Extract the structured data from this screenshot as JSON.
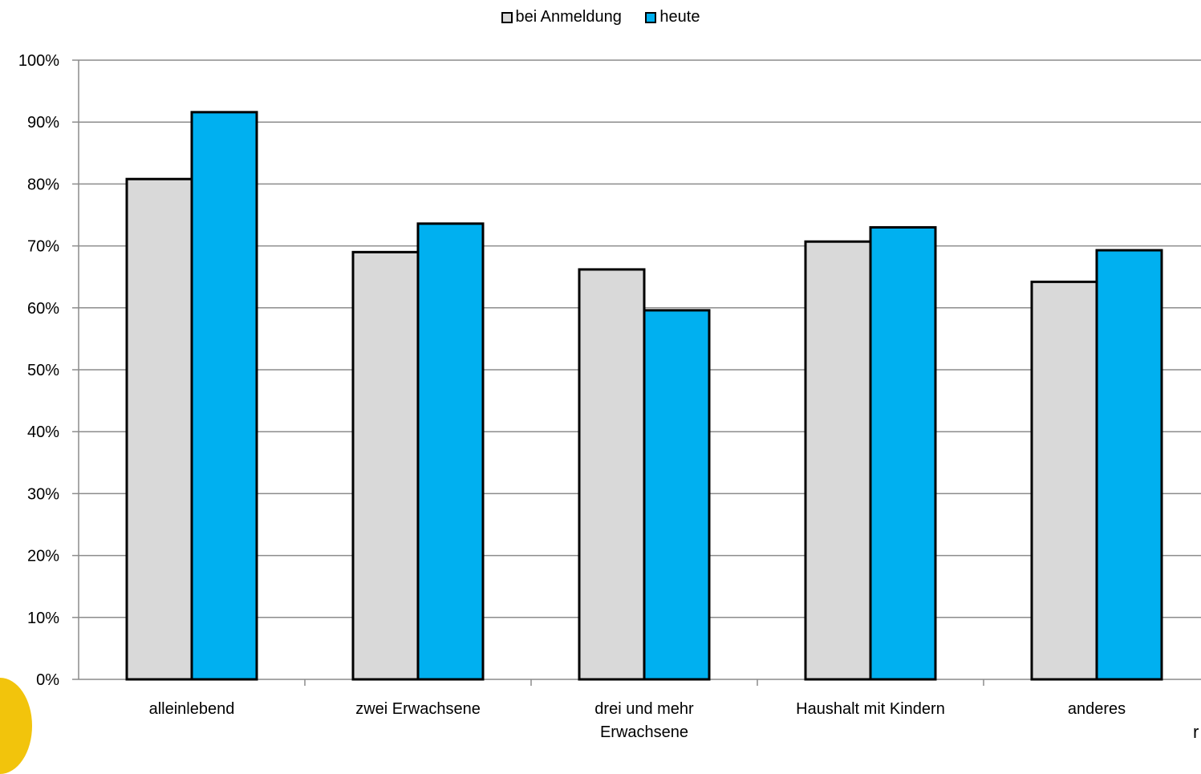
{
  "chart_data": {
    "type": "bar",
    "categories": [
      "alleinlebend",
      "zwei Erwachsene",
      "drei und mehr Erwachsene",
      "Haushalt mit Kindern",
      "anderes"
    ],
    "category_lines": [
      [
        "alleinlebend"
      ],
      [
        "zwei Erwachsene"
      ],
      [
        "drei und mehr",
        "Erwachsene"
      ],
      [
        "Haushalt mit Kindern"
      ],
      [
        "anderes"
      ]
    ],
    "series": [
      {
        "name": "bei Anmeldung",
        "values": [
          0.808,
          0.69,
          0.662,
          0.707,
          0.642
        ],
        "color": "#d9d9d9"
      },
      {
        "name": "heute",
        "values": [
          0.916,
          0.736,
          0.596,
          0.73,
          0.693
        ],
        "color": "#00b0f0"
      }
    ],
    "ylim": [
      0,
      1
    ],
    "yticks": [
      "0%",
      "10%",
      "20%",
      "30%",
      "40%",
      "50%",
      "60%",
      "70%",
      "80%",
      "90%",
      "100%"
    ],
    "grid": true,
    "legend_position": "top",
    "title": "",
    "xlabel": "",
    "ylabel": ""
  },
  "corner_text": "r"
}
